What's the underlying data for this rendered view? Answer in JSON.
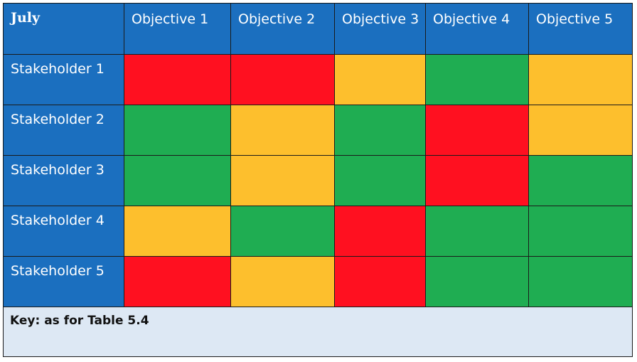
{
  "table": {
    "corner_label": "July",
    "columns": [
      "Objective 1",
      "Objective 2",
      "Objective 3",
      "Objective 4",
      "Objective 5"
    ],
    "rows": [
      {
        "label": "Stakeholder 1",
        "status": [
          "red",
          "red",
          "amber",
          "green",
          "amber"
        ]
      },
      {
        "label": "Stakeholder 2",
        "status": [
          "green",
          "amber",
          "green",
          "red",
          "amber"
        ]
      },
      {
        "label": "Stakeholder 3",
        "status": [
          "green",
          "amber",
          "green",
          "red",
          "green"
        ]
      },
      {
        "label": "Stakeholder 4",
        "status": [
          "amber",
          "green",
          "red",
          "green",
          "green"
        ]
      },
      {
        "label": "Stakeholder 5",
        "status": [
          "red",
          "amber",
          "red",
          "green",
          "green"
        ]
      }
    ],
    "key_text": "Key: as for Table 5.4"
  },
  "colors": {
    "header_blue": "#1b6fbf",
    "red": "#ff1020",
    "amber": "#fdbf2d",
    "green": "#1fad52",
    "key_background": "#dde8f4"
  }
}
